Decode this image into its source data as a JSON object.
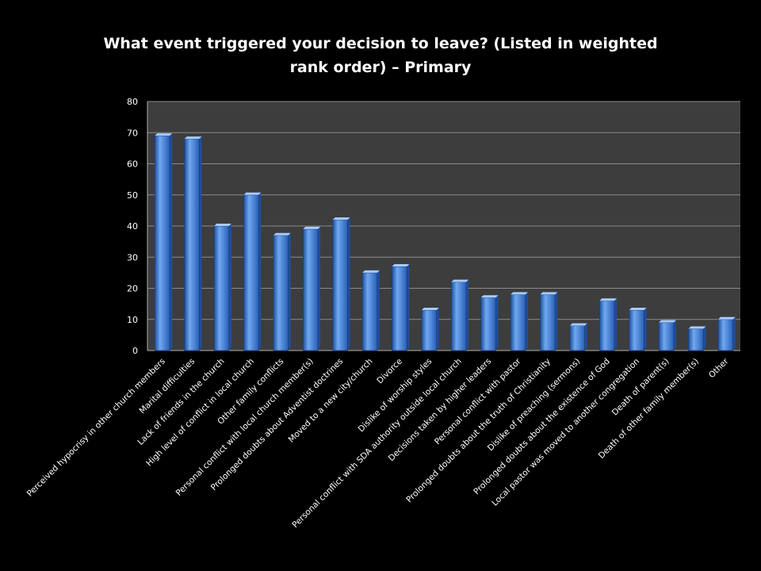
{
  "chart_data": {
    "type": "bar",
    "title": "What event triggered your decision to leave? (Listed in weighted rank order) – Primary",
    "xlabel": "",
    "ylabel": "",
    "ylim": [
      0,
      80
    ],
    "yticks": [
      0,
      10,
      20,
      30,
      40,
      50,
      60,
      70,
      80
    ],
    "grid": true,
    "legend": "none",
    "colors": {
      "background": "#000000",
      "plot_area": "#3d3d3d",
      "gridline": "#8c8c8c",
      "bar_light": "#6fa8f0",
      "bar_mid": "#3b7ad8",
      "bar_dark": "#1f4f9e",
      "text": "#ffffff"
    },
    "categories": [
      "Perceived hypocrisy in other church members",
      "Marital difficulties",
      "Lack of friends in the church",
      "High level of conflict in local church",
      "Other family conflicts",
      "Personal conflict with local church member(s)",
      "Prolonged doubts about Adventist doctrines",
      "Moved to a new city/church",
      "Divorce",
      "Dislike of worship styles",
      "Personal conflict with SDA authority outside local church",
      "Decisions taken by higher leaders",
      "Personal conflict with pastor",
      "Prolonged doubts about the truth of Christianity",
      "Dislike of preaching (sermons)",
      "Prolonged doubts about the existence of God",
      "Local pastor was moved to another congregation",
      "Death of parent(s)",
      "Death of other family member(s)",
      "Other"
    ],
    "values": [
      69,
      68,
      40,
      50,
      37,
      39,
      42,
      25,
      27,
      13,
      22,
      17,
      18,
      18,
      8,
      16,
      13,
      9,
      7,
      10
    ]
  }
}
